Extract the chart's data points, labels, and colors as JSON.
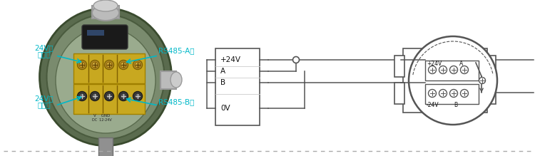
{
  "bg_color": "#ffffff",
  "dashed_line_color": "#aaaaaa",
  "box_color": "#555555",
  "wire_color": "#555555",
  "cyan_color": "#00b8c8",
  "figure_width": 7.5,
  "figure_height": 2.19,
  "dpi": 100,
  "box_labels": [
    "+24V",
    "A",
    "B",
    "0V"
  ],
  "annotations": {
    "top_left_line1": "24V电",
    "top_left_line2": "源正极",
    "bot_left_line1": "24V电",
    "bot_left_line2": "源负极",
    "top_right": "RS485-A极",
    "bot_right": "RS485-B极"
  },
  "circle_top_labels": [
    "+24V",
    "A"
  ],
  "circle_bot_labels": [
    "-24V",
    "B"
  ]
}
